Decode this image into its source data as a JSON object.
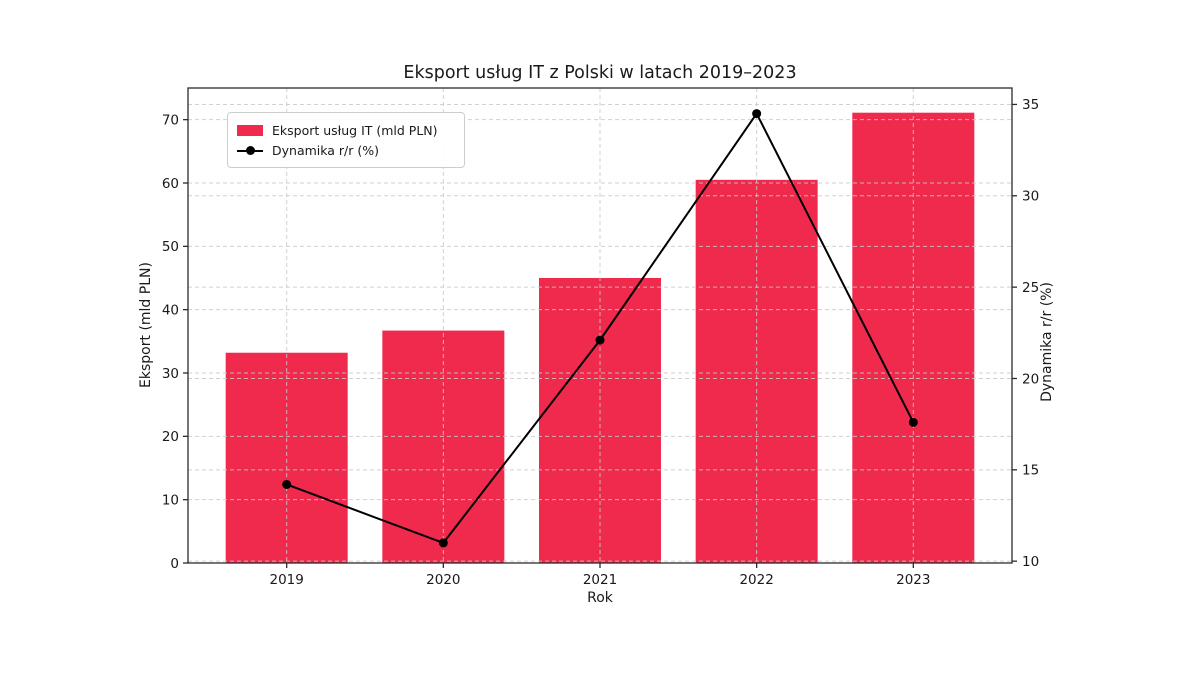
{
  "chart_data": {
    "type": "bar",
    "title": "Eksport usług IT z Polski w latach 2019–2023",
    "xlabel": "Rok",
    "ylabel_left": "Eksport (mld PLN)",
    "ylabel_right": "Dynamika r/r (%)",
    "categories": [
      "2019",
      "2020",
      "2021",
      "2022",
      "2023"
    ],
    "series": [
      {
        "name": "Eksport usług IT (mld PLN)",
        "type": "bar",
        "axis": "left",
        "values": [
          33.2,
          36.7,
          45.0,
          60.5,
          71.1
        ],
        "color": "#F02A4D"
      },
      {
        "name": "Dynamika r/r (%)",
        "type": "line",
        "axis": "right",
        "values": [
          14.2,
          11.0,
          22.1,
          34.5,
          17.6
        ],
        "color": "#000000"
      }
    ],
    "left_ticks": [
      0,
      10,
      20,
      30,
      40,
      50,
      60,
      70
    ],
    "right_ticks": [
      10,
      15,
      20,
      25,
      30,
      35
    ],
    "ylim_left": [
      0,
      75
    ],
    "ylim_right": [
      9.9,
      35.9
    ],
    "grid": true,
    "grid_color": "#c9c9c9",
    "spine_color": "#2b2b2b",
    "background": "#ffffff",
    "legend_position": "upper left"
  }
}
